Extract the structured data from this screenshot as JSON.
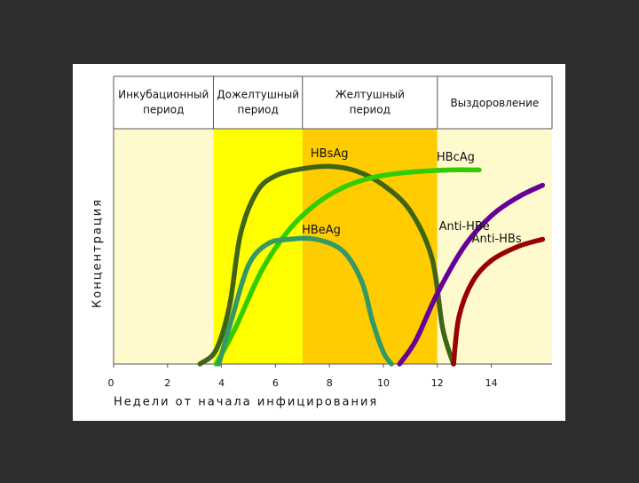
{
  "chart_data": {
    "type": "line",
    "y_label": "Концентрация",
    "x_label": "Недели от начала инфицирования",
    "xlim": [
      0,
      16.25
    ],
    "xticks": [
      0,
      2,
      4,
      6,
      8,
      10,
      12,
      14
    ],
    "ylim": [
      0,
      100
    ],
    "periods": [
      {
        "label": [
          "Инкубационный",
          "период"
        ],
        "start": 0,
        "end": 3.7,
        "color": "#fffacd"
      },
      {
        "label": [
          "Дожелтушный",
          "период"
        ],
        "start": 3.7,
        "end": 7.0,
        "color": "#ffff00"
      },
      {
        "label": [
          "Желтушный",
          "период"
        ],
        "start": 7.0,
        "end": 12.0,
        "color": "#ffcc00"
      },
      {
        "label": [
          "Выздоровление"
        ],
        "start": 12.0,
        "end": 16.25,
        "color": "#fffacd"
      }
    ],
    "series": [
      {
        "name": "HBsAg",
        "color": "#3f6418",
        "x": [
          3.2,
          3.8,
          4.3,
          4.7,
          5.3,
          6,
          7,
          8,
          9,
          10,
          11,
          11.8,
          12.2,
          12.6
        ],
        "values": [
          0,
          6,
          25,
          55,
          73,
          80,
          83,
          84,
          82,
          76,
          65,
          45,
          15,
          0
        ]
      },
      {
        "name": "HBcAg",
        "color": "#33cc00",
        "x": [
          3.8,
          4.5,
          5.5,
          6.5,
          7.5,
          8.5,
          9.5,
          10.5,
          11.5,
          12.5,
          13.55
        ],
        "values": [
          0,
          15,
          40,
          57,
          68,
          75,
          79,
          81,
          82,
          82.5,
          82.5
        ]
      },
      {
        "name": "HBeAg",
        "color": "#339966",
        "x": [
          3.9,
          4.4,
          5,
          5.7,
          6.5,
          7.5,
          8.5,
          9.2,
          9.6,
          10,
          10.3
        ],
        "values": [
          0,
          20,
          42,
          51,
          53,
          53,
          48,
          35,
          18,
          5,
          0
        ]
      },
      {
        "name": "Anti-HBe",
        "color": "#660099",
        "x": [
          10.6,
          11.2,
          12,
          13,
          14,
          15,
          15.9
        ],
        "values": [
          0,
          10,
          30,
          50,
          63,
          71,
          76
        ]
      },
      {
        "name": "Anti-HBs",
        "color": "#990000",
        "x": [
          12.6,
          12.8,
          13.3,
          14,
          15,
          15.9
        ],
        "values": [
          0,
          20,
          35,
          44,
          50,
          53
        ]
      }
    ]
  }
}
